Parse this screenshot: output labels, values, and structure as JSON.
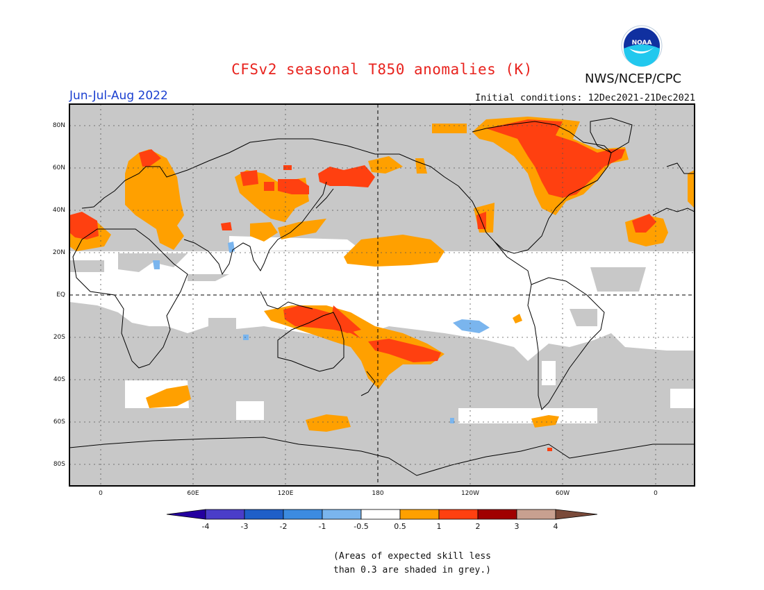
{
  "title": "CFSv2 seasonal T850 anomalies (K)",
  "agency": "NWS/NCEP/CPC",
  "logo_text": "NOAA",
  "season": "Jun-Jul-Aug 2022",
  "initial_conditions": "Initial conditions: 12Dec2021-21Dec2021",
  "lat_labels": [
    "80N",
    "60N",
    "40N",
    "20N",
    "EQ",
    "20S",
    "40S",
    "60S",
    "80S"
  ],
  "lon_labels": [
    "0",
    "60E",
    "120E",
    "180",
    "120W",
    "60W",
    "0"
  ],
  "colorbar": {
    "labels": [
      "-4",
      "-3",
      "-2",
      "-1",
      "-0.5",
      "0.5",
      "1",
      "2",
      "3",
      "4"
    ],
    "colors": [
      "#24009f",
      "#4a3dc9",
      "#1f5fc8",
      "#3c8be0",
      "#7ab5ee",
      "#ffffff",
      "#ffa000",
      "#ff4010",
      "#a00000",
      "#c8a090",
      "#7a4a3a"
    ]
  },
  "note_line1": "(Areas of expected skill less",
  "note_line2": "than 0.3 are shaded in grey.)",
  "colors": {
    "skill_grey": "#c8c8c8",
    "warm1": "#ffa000",
    "warm2": "#ff4010",
    "cool1": "#7ab5ee"
  }
}
